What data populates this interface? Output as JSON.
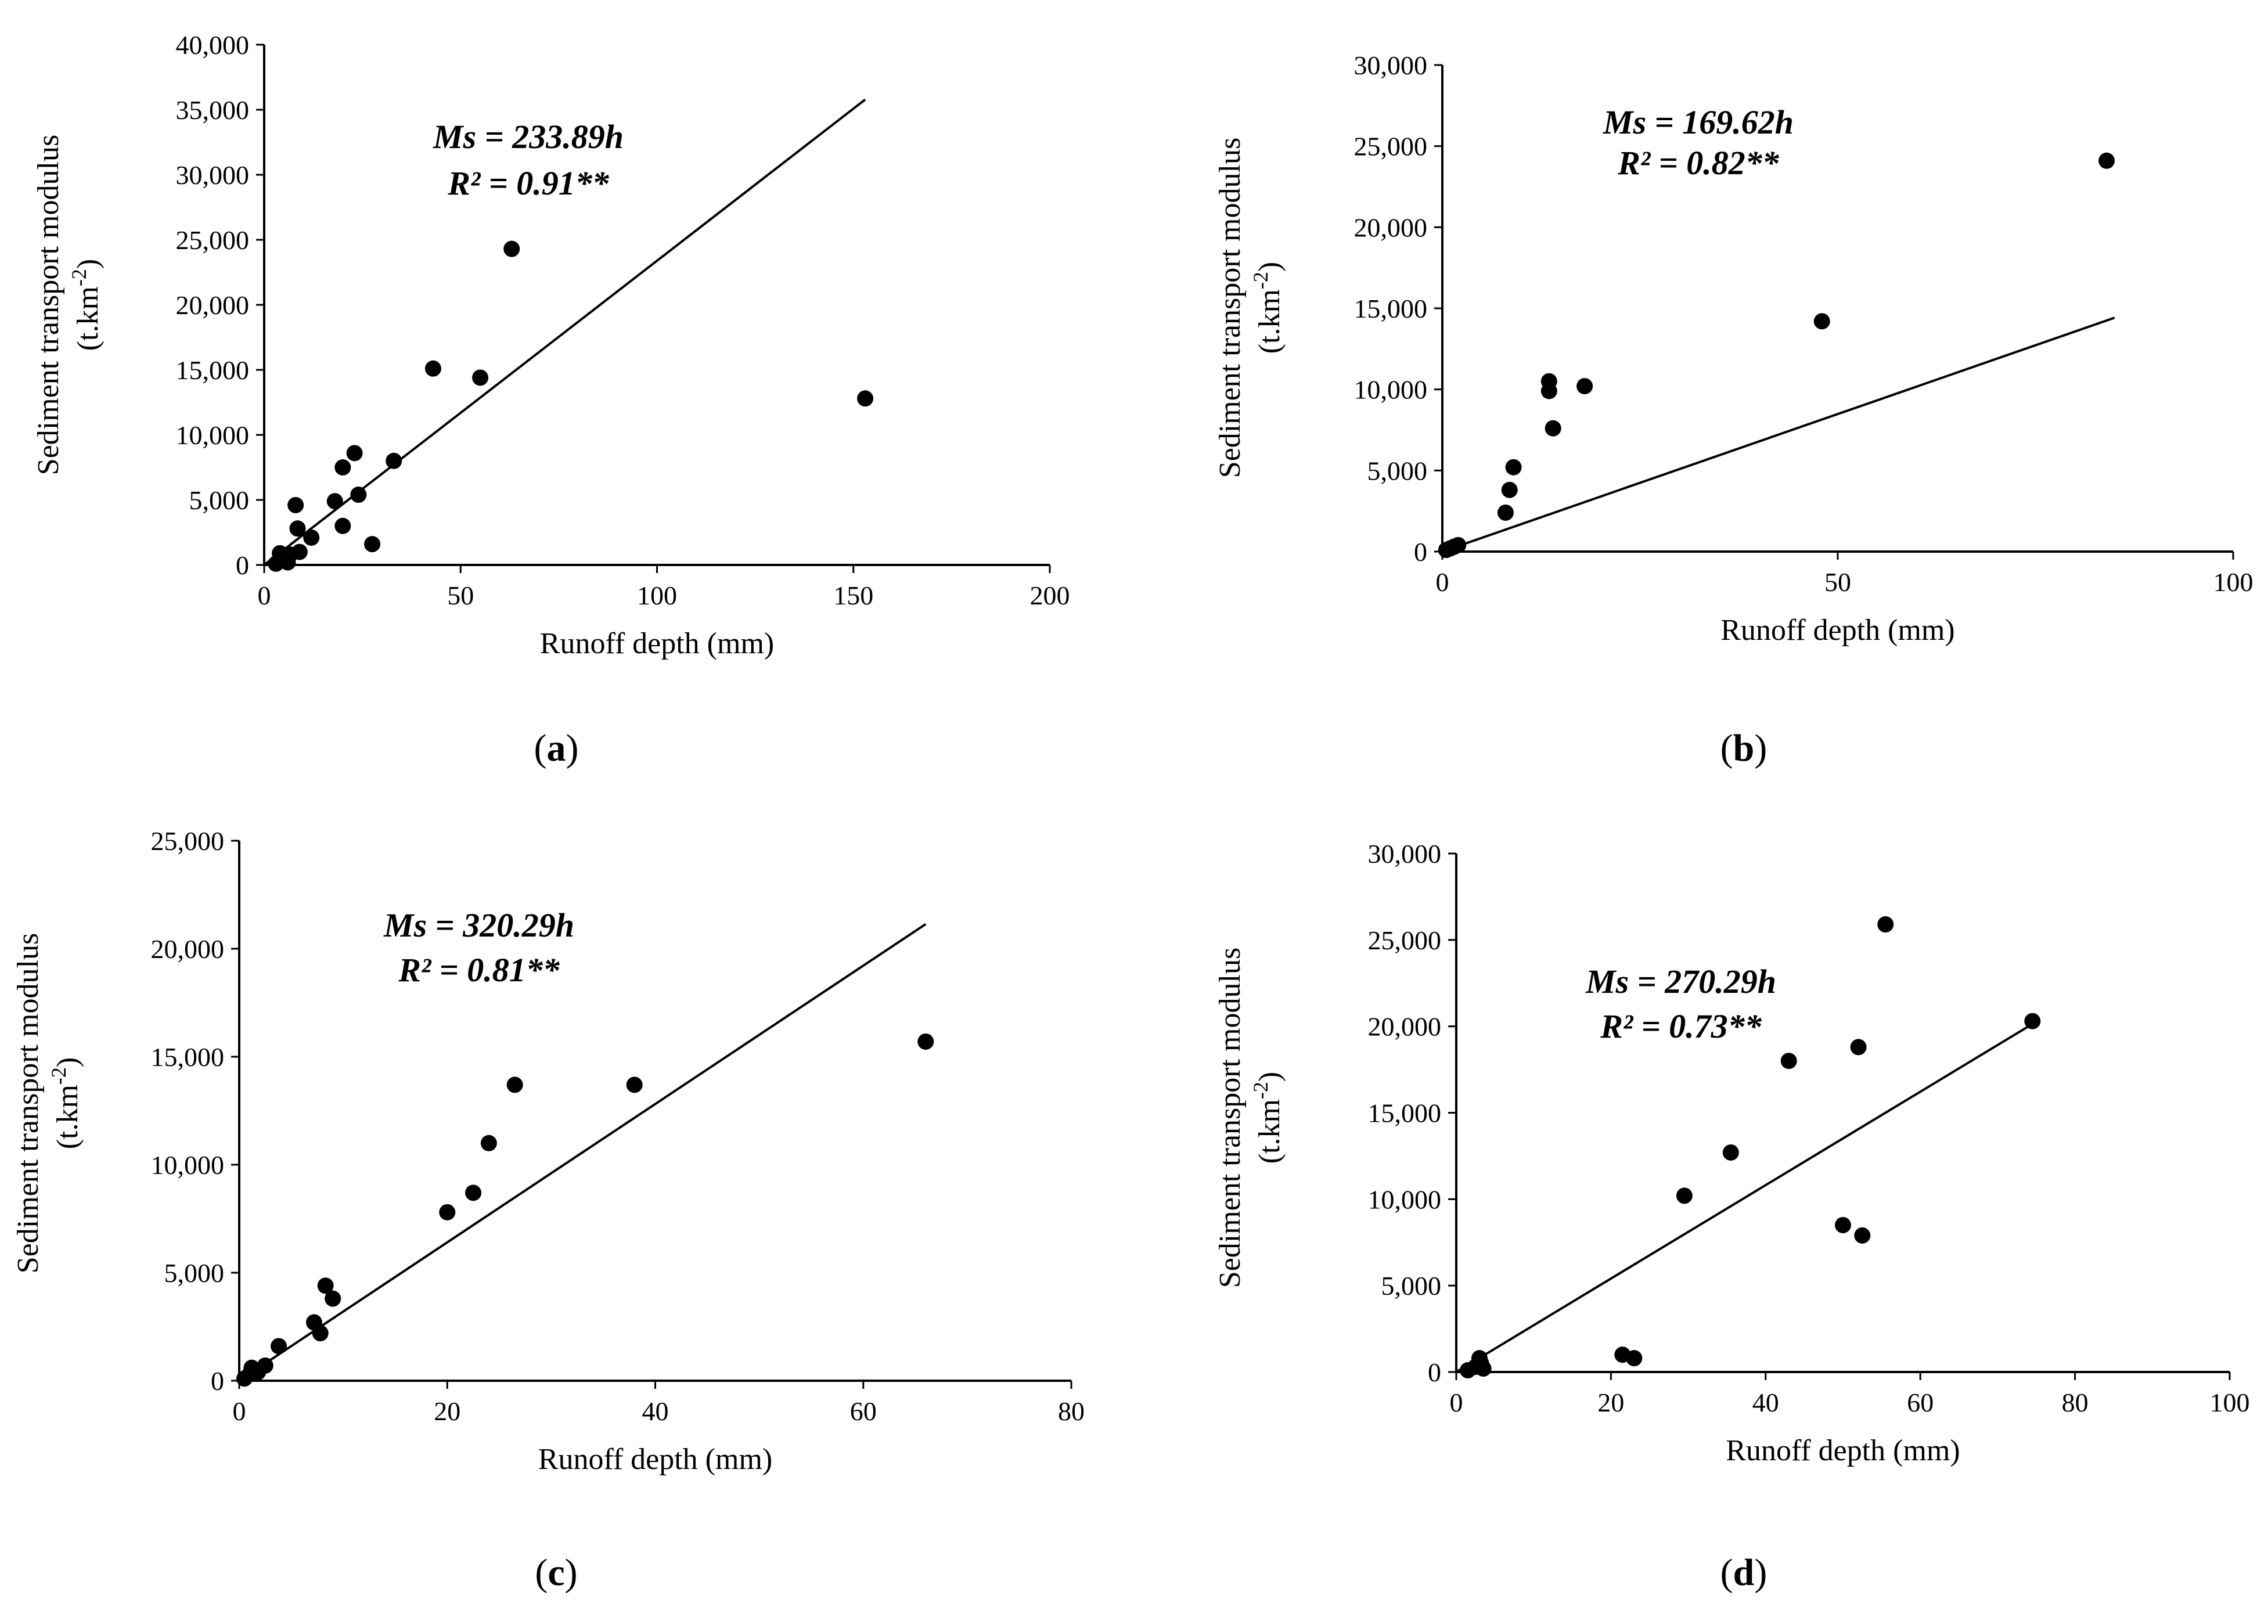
{
  "chart_data": [
    {
      "panel": "a",
      "type": "scatter",
      "xlabel": "Runoff depth (mm)",
      "ylabel_line1": "Sediment  transport modulus",
      "ylabel_line2": "(t.km-2)",
      "xlim": [
        0,
        200
      ],
      "ylim": [
        0,
        40000
      ],
      "x_ticks": [
        0,
        50,
        100,
        150,
        200
      ],
      "x_tick_labels": [
        "0",
        "50",
        "100",
        "150",
        "200"
      ],
      "y_ticks": [
        0,
        5000,
        10000,
        15000,
        20000,
        25000,
        30000,
        35000,
        40000
      ],
      "y_tick_labels": [
        "0",
        "5,000",
        "10,000",
        "15,000",
        "20,000",
        "25,000",
        "30,000",
        "35,000",
        "40,000"
      ],
      "equation": "Ms = 233.89h",
      "r_squared": "R² = 0.91**",
      "slope": 233.89,
      "fit_x_range": [
        0,
        153
      ],
      "points": [
        {
          "x": 3,
          "y": 100
        },
        {
          "x": 4,
          "y": 900
        },
        {
          "x": 5,
          "y": 400
        },
        {
          "x": 6,
          "y": 200
        },
        {
          "x": 6.5,
          "y": 800
        },
        {
          "x": 8,
          "y": 4600
        },
        {
          "x": 8.5,
          "y": 2800
        },
        {
          "x": 9,
          "y": 1000
        },
        {
          "x": 12,
          "y": 2100
        },
        {
          "x": 18,
          "y": 4900
        },
        {
          "x": 20,
          "y": 7500
        },
        {
          "x": 20,
          "y": 3000
        },
        {
          "x": 23,
          "y": 8600
        },
        {
          "x": 24,
          "y": 5400
        },
        {
          "x": 27.5,
          "y": 1600
        },
        {
          "x": 33,
          "y": 8000
        },
        {
          "x": 43,
          "y": 15100
        },
        {
          "x": 55,
          "y": 14400
        },
        {
          "x": 63,
          "y": 24300
        },
        {
          "x": 153,
          "y": 12800
        }
      ],
      "panel_label_letter": "a"
    },
    {
      "panel": "b",
      "type": "scatter",
      "xlabel": "Runoff depth (mm)",
      "ylabel_line1": "Sediment transport modulus",
      "ylabel_line2": "(t.km-2)",
      "xlim": [
        0,
        100
      ],
      "ylim": [
        0,
        30000
      ],
      "x_ticks": [
        0,
        50,
        100
      ],
      "x_tick_labels": [
        "0",
        "50",
        "100"
      ],
      "y_ticks": [
        0,
        5000,
        10000,
        15000,
        20000,
        25000,
        30000
      ],
      "y_tick_labels": [
        "0",
        "5,000",
        "10,000",
        "15,000",
        "20,000",
        "25,000",
        "30,000"
      ],
      "equation": "Ms = 169.62h",
      "r_squared": "R² = 0.82**",
      "slope": 169.62,
      "fit_x_range": [
        0,
        85
      ],
      "points": [
        {
          "x": 0.5,
          "y": 100
        },
        {
          "x": 1,
          "y": 200
        },
        {
          "x": 1.5,
          "y": 300
        },
        {
          "x": 2,
          "y": 400
        },
        {
          "x": 8,
          "y": 2400
        },
        {
          "x": 8.5,
          "y": 3800
        },
        {
          "x": 9,
          "y": 5200
        },
        {
          "x": 13.5,
          "y": 10500
        },
        {
          "x": 13.5,
          "y": 9900
        },
        {
          "x": 14,
          "y": 7600
        },
        {
          "x": 18,
          "y": 10200
        },
        {
          "x": 48,
          "y": 14200
        },
        {
          "x": 84,
          "y": 24100
        }
      ],
      "panel_label_letter": "b"
    },
    {
      "panel": "c",
      "type": "scatter",
      "xlabel": "Runoff depth (mm)",
      "ylabel_line1": "Sediment transport modulus",
      "ylabel_line2": "(t.km-2)",
      "xlim": [
        0,
        80
      ],
      "ylim": [
        0,
        25000
      ],
      "x_ticks": [
        0,
        20,
        40,
        60,
        80
      ],
      "x_tick_labels": [
        "0",
        "20",
        "40",
        "60",
        "80"
      ],
      "y_ticks": [
        0,
        5000,
        10000,
        15000,
        20000,
        25000
      ],
      "y_tick_labels": [
        "0",
        "5,000",
        "10,000",
        "15,000",
        "20,000",
        "25,000"
      ],
      "equation": "Ms = 320.29h",
      "r_squared": "R² = 0.81**",
      "slope": 320.29,
      "fit_x_range": [
        0,
        66
      ],
      "points": [
        {
          "x": 0.5,
          "y": 100
        },
        {
          "x": 1,
          "y": 300
        },
        {
          "x": 1.2,
          "y": 600
        },
        {
          "x": 1.8,
          "y": 400
        },
        {
          "x": 2.5,
          "y": 700
        },
        {
          "x": 3.8,
          "y": 1600
        },
        {
          "x": 7.2,
          "y": 2700
        },
        {
          "x": 7.8,
          "y": 2200
        },
        {
          "x": 8.3,
          "y": 4400
        },
        {
          "x": 9,
          "y": 3800
        },
        {
          "x": 20,
          "y": 7800
        },
        {
          "x": 22.5,
          "y": 8700
        },
        {
          "x": 24,
          "y": 11000
        },
        {
          "x": 26.5,
          "y": 13700
        },
        {
          "x": 38,
          "y": 13700
        },
        {
          "x": 66,
          "y": 15700
        }
      ],
      "panel_label_letter": "c"
    },
    {
      "panel": "d",
      "type": "scatter",
      "xlabel": "Runoff depth (mm)",
      "ylabel_line1": "Sediment transport modulus",
      "ylabel_line2": "(t.km-2)",
      "xlim": [
        0,
        100
      ],
      "ylim": [
        0,
        30000
      ],
      "x_ticks": [
        0,
        20,
        40,
        60,
        80,
        100
      ],
      "x_tick_labels": [
        "0",
        "20",
        "40",
        "60",
        "80",
        "100"
      ],
      "y_ticks": [
        0,
        5000,
        10000,
        15000,
        20000,
        25000,
        30000
      ],
      "y_tick_labels": [
        "0",
        "5,000",
        "10,000",
        "15,000",
        "20,000",
        "25,000",
        "30,000"
      ],
      "equation": "Ms = 270.29h",
      "r_squared": "R² = 0.73**",
      "slope": 270.29,
      "fit_x_range": [
        0,
        75
      ],
      "points": [
        {
          "x": 1.5,
          "y": 100
        },
        {
          "x": 2.5,
          "y": 300
        },
        {
          "x": 3,
          "y": 800
        },
        {
          "x": 3.2,
          "y": 500
        },
        {
          "x": 3.5,
          "y": 200
        },
        {
          "x": 21.5,
          "y": 1000
        },
        {
          "x": 23,
          "y": 800
        },
        {
          "x": 29.5,
          "y": 10200
        },
        {
          "x": 35.5,
          "y": 12700
        },
        {
          "x": 43,
          "y": 18000
        },
        {
          "x": 50,
          "y": 8500
        },
        {
          "x": 52,
          "y": 18800
        },
        {
          "x": 52.5,
          "y": 7900
        },
        {
          "x": 55.5,
          "y": 25900
        },
        {
          "x": 74.5,
          "y": 20300
        }
      ],
      "panel_label_letter": "d"
    }
  ]
}
